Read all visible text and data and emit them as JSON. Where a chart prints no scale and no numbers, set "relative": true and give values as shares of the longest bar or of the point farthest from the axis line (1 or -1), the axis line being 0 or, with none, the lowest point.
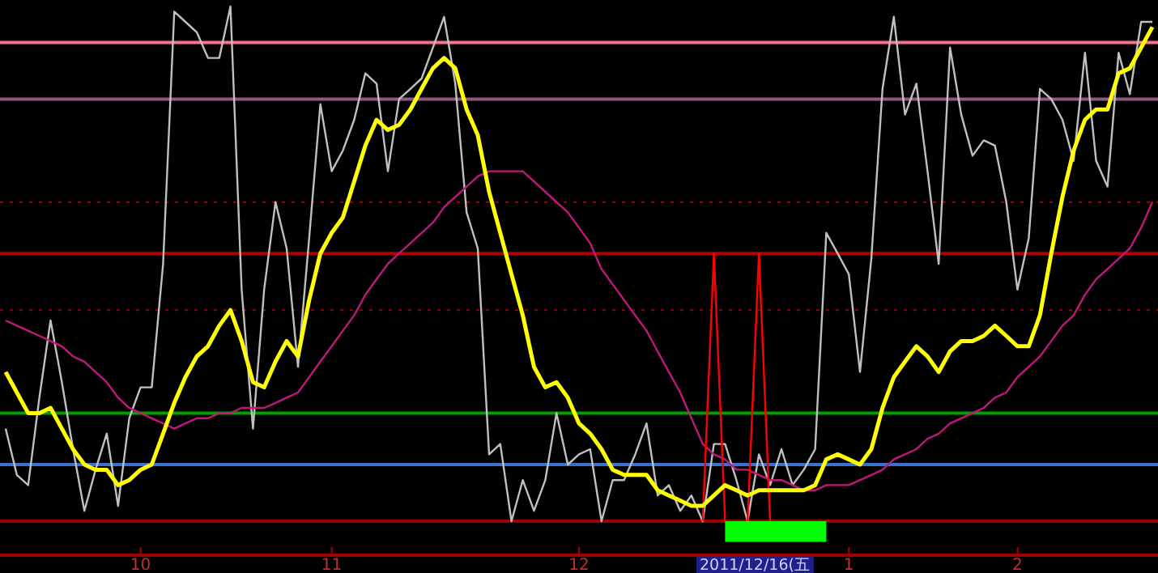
{
  "chart_data": {
    "type": "line",
    "relative": true,
    "legend": false,
    "grid": false,
    "categories": [
      null,
      null,
      null,
      null,
      null,
      null,
      null,
      null,
      null,
      null,
      null,
      null,
      "10",
      null,
      null,
      null,
      null,
      null,
      null,
      null,
      null,
      null,
      null,
      null,
      null,
      null,
      null,
      null,
      null,
      "11",
      null,
      null,
      null,
      null,
      null,
      null,
      null,
      null,
      null,
      null,
      null,
      null,
      null,
      null,
      null,
      null,
      null,
      null,
      null,
      null,
      null,
      "12",
      null,
      null,
      null,
      null,
      null,
      null,
      null,
      null,
      null,
      null,
      null,
      null,
      null,
      null,
      null,
      null,
      null,
      null,
      null,
      null,
      null,
      null,
      null,
      "1",
      null,
      null,
      null,
      null,
      null,
      null,
      null,
      null,
      null,
      null,
      null,
      null,
      null,
      null,
      "2",
      null,
      null,
      null,
      null,
      null,
      null,
      null,
      null,
      null,
      null,
      null,
      null
    ],
    "ref_lines": [
      {
        "axis": "y",
        "value": 0.93,
        "color": "#ff7090",
        "line_style": "solid"
      },
      {
        "axis": "y",
        "value": 0.82,
        "color": "#8e5a80",
        "line_style": "solid"
      },
      {
        "axis": "y",
        "value": 0.62,
        "color": "#a00000",
        "line_style": "dotted"
      },
      {
        "axis": "y",
        "value": 0.52,
        "color": "#b00000",
        "line_style": "solid"
      },
      {
        "axis": "y",
        "value": 0.41,
        "color": "#a00000",
        "line_style": "dotted"
      },
      {
        "axis": "y",
        "value": 0.21,
        "color": "#00a000",
        "line_style": "solid"
      },
      {
        "axis": "y",
        "value": 0.11,
        "color": "#3a70d0",
        "line_style": "solid"
      },
      {
        "axis": "y",
        "value": 0,
        "color": "#a00000",
        "line_style": "solid"
      }
    ],
    "series": [
      {
        "type": "area",
        "color": "#00ff00",
        "values": [
          null,
          null,
          null,
          null,
          null,
          null,
          null,
          null,
          null,
          null,
          null,
          null,
          null,
          null,
          null,
          null,
          null,
          null,
          null,
          null,
          null,
          null,
          null,
          null,
          null,
          null,
          null,
          null,
          null,
          null,
          null,
          null,
          null,
          null,
          null,
          null,
          null,
          null,
          null,
          null,
          null,
          null,
          null,
          null,
          null,
          null,
          null,
          null,
          null,
          null,
          null,
          null,
          null,
          null,
          null,
          null,
          null,
          null,
          null,
          null,
          null,
          null,
          null,
          null,
          -0.04,
          -0.04,
          -0.04,
          -0.04,
          -0.04,
          -0.04,
          -0.04,
          -0.04,
          -0.04,
          -0.04,
          null,
          null,
          null,
          null,
          null,
          null,
          null,
          null,
          null,
          null,
          null,
          null,
          null,
          null,
          null,
          null,
          null,
          null,
          null,
          null,
          null,
          null,
          null,
          null,
          null,
          null,
          null,
          null,
          null
        ]
      },
      {
        "color": "#c0c0c0",
        "values": [
          0.18,
          0.09,
          0.07,
          0.24,
          0.39,
          0.27,
          0.14,
          0.02,
          0.1,
          0.17,
          0.03,
          0.2,
          0.26,
          0.26,
          0.5,
          0.99,
          0.97,
          0.95,
          0.9,
          0.9,
          1.0,
          0.45,
          0.18,
          0.45,
          0.62,
          0.53,
          0.3,
          0.55,
          0.81,
          0.68,
          0.72,
          0.78,
          0.87,
          0.85,
          0.68,
          0.82,
          0.84,
          0.86,
          0.92,
          0.98,
          0.85,
          0.6,
          0.53,
          0.13,
          0.15,
          0.0,
          0.08,
          0.02,
          0.08,
          0.21,
          0.11,
          0.13,
          0.14,
          0.0,
          0.08,
          0.08,
          0.13,
          0.19,
          0.05,
          0.07,
          0.02,
          0.05,
          0.0,
          0.15,
          0.15,
          0.08,
          0.0,
          0.13,
          0.07,
          0.14,
          0.07,
          0.1,
          0.14,
          0.56,
          0.52,
          0.48,
          0.29,
          0.51,
          0.84,
          0.98,
          0.79,
          0.85,
          0.68,
          0.5,
          0.92,
          0.79,
          0.71,
          0.74,
          0.73,
          0.62,
          0.45,
          0.55,
          0.84,
          0.82,
          0.78,
          0.7,
          0.91,
          0.7,
          0.65,
          0.91,
          0.83,
          0.97,
          0.97
        ]
      },
      {
        "color": "#c0187a",
        "values": [
          0.39,
          0.38,
          0.37,
          0.36,
          0.35,
          0.34,
          0.32,
          0.31,
          0.29,
          0.27,
          0.24,
          0.22,
          0.21,
          0.2,
          0.19,
          0.18,
          0.19,
          0.2,
          0.2,
          0.21,
          0.21,
          0.22,
          0.22,
          0.22,
          0.23,
          0.24,
          0.25,
          0.28,
          0.31,
          0.34,
          0.37,
          0.4,
          0.44,
          0.47,
          0.5,
          0.52,
          0.54,
          0.56,
          0.58,
          0.61,
          0.63,
          0.65,
          0.67,
          0.68,
          0.68,
          0.68,
          0.68,
          0.66,
          0.64,
          0.62,
          0.6,
          0.57,
          0.54,
          0.49,
          0.46,
          0.43,
          0.4,
          0.37,
          0.33,
          0.29,
          0.25,
          0.2,
          0.15,
          0.13,
          0.12,
          0.1,
          0.1,
          0.09,
          0.08,
          0.08,
          0.07,
          0.06,
          0.06,
          0.07,
          0.07,
          0.07,
          0.08,
          0.09,
          0.1,
          0.12,
          0.13,
          0.14,
          0.16,
          0.17,
          0.19,
          0.2,
          0.21,
          0.22,
          0.24,
          0.25,
          0.28,
          0.3,
          0.32,
          0.35,
          0.38,
          0.4,
          0.44,
          0.47,
          0.49,
          0.51,
          0.53,
          0.57,
          0.62
        ]
      },
      {
        "color": "#ff0000",
        "values": [
          null,
          null,
          null,
          null,
          null,
          null,
          null,
          null,
          null,
          null,
          null,
          null,
          null,
          null,
          null,
          null,
          null,
          null,
          null,
          null,
          null,
          null,
          null,
          null,
          null,
          null,
          null,
          null,
          null,
          null,
          null,
          null,
          null,
          null,
          null,
          null,
          null,
          null,
          null,
          null,
          null,
          null,
          null,
          null,
          null,
          null,
          null,
          null,
          null,
          null,
          null,
          null,
          null,
          null,
          null,
          null,
          null,
          null,
          null,
          null,
          null,
          null,
          0,
          0.52,
          0,
          null,
          0,
          0.52,
          0,
          null,
          null,
          null,
          null,
          null,
          null,
          null,
          null,
          null,
          null,
          null,
          null,
          null,
          null,
          null,
          null,
          null,
          null,
          null,
          null,
          null,
          null,
          null,
          null,
          null,
          null,
          null,
          null,
          null,
          null,
          null,
          null,
          null,
          null
        ]
      },
      {
        "color": "#ffff00",
        "values": [
          0.29,
          0.25,
          0.21,
          0.21,
          0.22,
          0.18,
          0.14,
          0.11,
          0.1,
          0.1,
          0.07,
          0.08,
          0.1,
          0.11,
          0.17,
          0.23,
          0.28,
          0.32,
          0.34,
          0.38,
          0.41,
          0.35,
          0.27,
          0.26,
          0.31,
          0.35,
          0.32,
          0.43,
          0.52,
          0.56,
          0.59,
          0.66,
          0.73,
          0.78,
          0.76,
          0.77,
          0.8,
          0.84,
          0.88,
          0.9,
          0.88,
          0.8,
          0.75,
          0.64,
          0.56,
          0.48,
          0.4,
          0.3,
          0.26,
          0.27,
          0.24,
          0.19,
          0.17,
          0.14,
          0.1,
          0.09,
          0.09,
          0.09,
          0.06,
          0.05,
          0.04,
          0.03,
          0.03,
          0.05,
          0.07,
          0.06,
          0.05,
          0.06,
          0.06,
          0.06,
          0.06,
          0.06,
          0.07,
          0.12,
          0.13,
          0.12,
          0.11,
          0.14,
          0.22,
          0.28,
          0.31,
          0.34,
          0.32,
          0.29,
          0.33,
          0.35,
          0.35,
          0.36,
          0.38,
          0.36,
          0.34,
          0.34,
          0.4,
          0.52,
          0.63,
          0.72,
          0.78,
          0.8,
          0.8,
          0.87,
          0.88,
          0.92,
          0.96
        ]
      }
    ],
    "annotations": [
      "2011/12/16(五"
    ]
  }
}
